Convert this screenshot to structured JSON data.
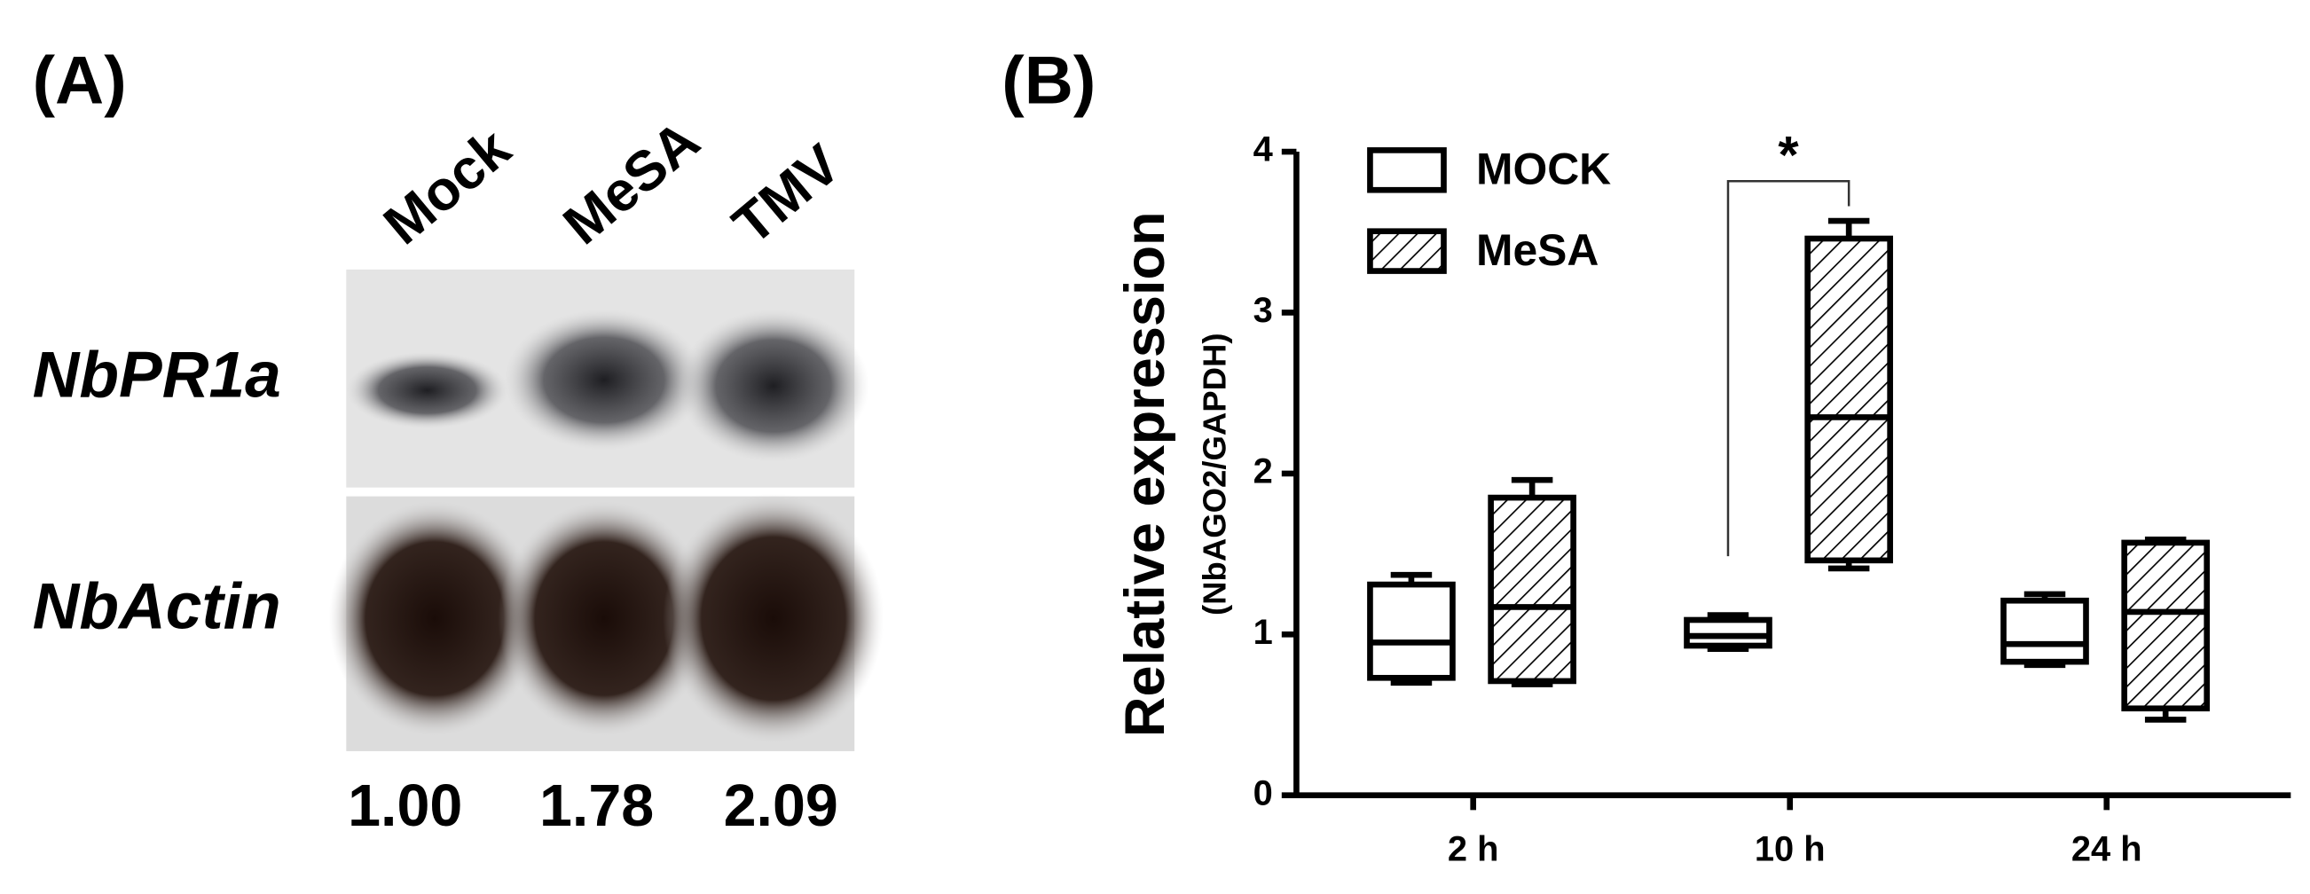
{
  "panel_a": {
    "label": "(A)",
    "lanes": [
      "Mock",
      "MeSA",
      "TMV"
    ],
    "rows": [
      "NbPR1a",
      "NbActin"
    ],
    "ratios": [
      "1.00",
      "1.78",
      "2.09"
    ]
  },
  "chart_data": {
    "type": "box",
    "panel_label": "(B)",
    "y_label": "Relative expression",
    "y_sublabel": "(NbAGO2/GAPDH)",
    "categories": [
      "2 h",
      "10 h",
      "24 h"
    ],
    "series": [
      {
        "name": "MOCK",
        "color": "#ffffff",
        "hatch": false,
        "values": [
          [
            0.7,
            0.73,
            0.95,
            1.31,
            1.37
          ],
          [
            0.91,
            0.93,
            0.99,
            1.09,
            1.12
          ],
          [
            0.81,
            0.83,
            0.94,
            1.21,
            1.25
          ]
        ]
      },
      {
        "name": "MeSA",
        "color": "#ffffff",
        "hatch": true,
        "values": [
          [
            0.69,
            0.71,
            1.17,
            1.85,
            1.96
          ],
          [
            1.41,
            1.46,
            2.35,
            3.46,
            3.57
          ],
          [
            0.47,
            0.54,
            1.14,
            1.57,
            1.59
          ]
        ]
      }
    ],
    "ylim": [
      0,
      4
    ],
    "yticks": [
      0,
      1,
      2,
      3,
      4
    ],
    "annotation": "*"
  }
}
